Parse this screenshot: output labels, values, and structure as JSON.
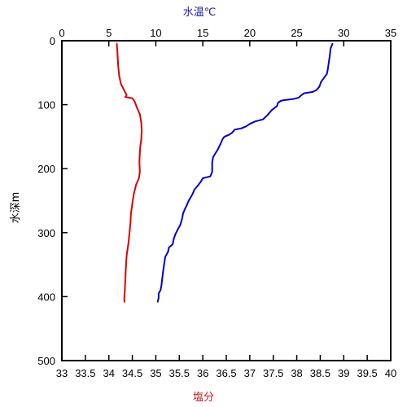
{
  "chart_data": {
    "type": "line",
    "title": "",
    "y_axis": {
      "label": "水深m",
      "range": [
        0,
        500
      ],
      "inverted": true,
      "ticks": [
        0,
        100,
        200,
        300,
        400,
        500
      ],
      "tick_labels": [
        "0",
        "100",
        "200",
        "300",
        "400",
        "500"
      ]
    },
    "x_axes": [
      {
        "id": "temperature",
        "position": "top",
        "label": "水温℃",
        "color": "#1a1aa8",
        "range": [
          0,
          35
        ],
        "ticks": [
          0,
          5,
          10,
          15,
          20,
          25,
          30,
          35
        ],
        "tick_labels": [
          "0",
          "5",
          "10",
          "15",
          "20",
          "25",
          "30",
          "35"
        ]
      },
      {
        "id": "salinity",
        "position": "bottom",
        "label": "塩分",
        "color": "#cc1a1a",
        "range": [
          33,
          40
        ],
        "ticks": [
          33,
          33.5,
          34,
          34.5,
          35,
          35.5,
          36,
          36.5,
          37,
          37.5,
          38,
          38.5,
          39,
          39.5,
          40
        ],
        "tick_labels": [
          "33",
          "33.5",
          "34",
          "34.5",
          "35",
          "35.5",
          "36",
          "36.5",
          "37",
          "37.5",
          "38",
          "38.5",
          "39",
          "39.5",
          "40"
        ]
      }
    ],
    "grid": false,
    "legend": "none",
    "series": [
      {
        "axis": "temperature",
        "color": "#0000cc",
        "points": [
          [
            28.8,
            5
          ],
          [
            28.6,
            12
          ],
          [
            28.5,
            25
          ],
          [
            28.3,
            45
          ],
          [
            28.2,
            52
          ],
          [
            27.9,
            58
          ],
          [
            27.6,
            64
          ],
          [
            27.4,
            72
          ],
          [
            27.1,
            77
          ],
          [
            26.7,
            80
          ],
          [
            25.8,
            82
          ],
          [
            25.5,
            85
          ],
          [
            25.2,
            89
          ],
          [
            24.7,
            91
          ],
          [
            23.6,
            93
          ],
          [
            23.3,
            94
          ],
          [
            23.0,
            97
          ],
          [
            22.9,
            102
          ],
          [
            22.3,
            109
          ],
          [
            21.9,
            116
          ],
          [
            21.4,
            123
          ],
          [
            20.6,
            126
          ],
          [
            20.0,
            130
          ],
          [
            19.6,
            134
          ],
          [
            19.1,
            137
          ],
          [
            18.4,
            139
          ],
          [
            18.1,
            144
          ],
          [
            17.8,
            147
          ],
          [
            17.3,
            150
          ],
          [
            17.1,
            154
          ],
          [
            16.9,
            161
          ],
          [
            16.6,
            170
          ],
          [
            16.3,
            177
          ],
          [
            16.1,
            182
          ],
          [
            16.0,
            190
          ],
          [
            16.0,
            205
          ],
          [
            15.8,
            212
          ],
          [
            15.0,
            215
          ],
          [
            14.8,
            220
          ],
          [
            14.5,
            226
          ],
          [
            14.1,
            233
          ],
          [
            13.9,
            240
          ],
          [
            13.5,
            250
          ],
          [
            13.3,
            257
          ],
          [
            13.1,
            263
          ],
          [
            12.9,
            270
          ],
          [
            12.8,
            278
          ],
          [
            12.6,
            288
          ],
          [
            12.3,
            296
          ],
          [
            12.1,
            302
          ],
          [
            11.9,
            310
          ],
          [
            11.8,
            318
          ],
          [
            11.4,
            323
          ],
          [
            11.3,
            330
          ],
          [
            11.0,
            338
          ],
          [
            10.9,
            348
          ],
          [
            10.8,
            358
          ],
          [
            10.7,
            370
          ],
          [
            10.6,
            382
          ],
          [
            10.5,
            390
          ],
          [
            10.3,
            395
          ],
          [
            10.3,
            402
          ],
          [
            10.2,
            408
          ]
        ]
      },
      {
        "axis": "salinity",
        "color": "#dd0000",
        "points": [
          [
            34.17,
            5
          ],
          [
            34.18,
            15
          ],
          [
            34.19,
            28
          ],
          [
            34.2,
            40
          ],
          [
            34.22,
            55
          ],
          [
            34.26,
            68
          ],
          [
            34.33,
            78
          ],
          [
            34.38,
            85
          ],
          [
            34.35,
            88
          ],
          [
            34.5,
            90
          ],
          [
            34.55,
            95
          ],
          [
            34.6,
            105
          ],
          [
            34.66,
            115
          ],
          [
            34.69,
            128
          ],
          [
            34.7,
            140
          ],
          [
            34.69,
            155
          ],
          [
            34.67,
            165
          ],
          [
            34.66,
            175
          ],
          [
            34.65,
            190
          ],
          [
            34.66,
            205
          ],
          [
            34.64,
            215
          ],
          [
            34.58,
            225
          ],
          [
            34.53,
            240
          ],
          [
            34.5,
            255
          ],
          [
            34.47,
            270
          ],
          [
            34.46,
            285
          ],
          [
            34.44,
            300
          ],
          [
            34.42,
            315
          ],
          [
            34.4,
            325
          ],
          [
            34.38,
            335
          ],
          [
            34.37,
            345
          ],
          [
            34.36,
            360
          ],
          [
            34.35,
            375
          ],
          [
            34.34,
            390
          ],
          [
            34.33,
            400
          ],
          [
            34.33,
            408
          ]
        ]
      }
    ]
  }
}
